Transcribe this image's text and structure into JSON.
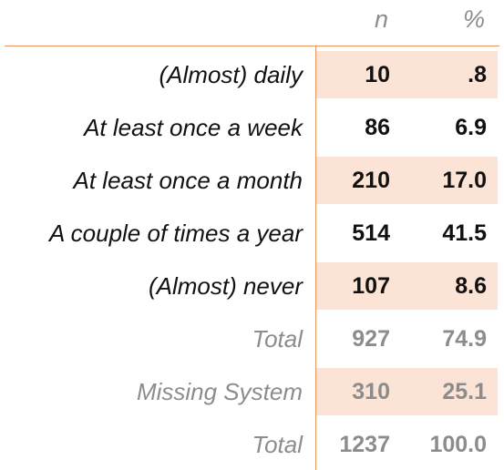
{
  "header": {
    "n": "n",
    "pct": "%"
  },
  "rows": [
    {
      "label": "(Almost) daily",
      "n": "10",
      "pct": ".8"
    },
    {
      "label": "At least once a week",
      "n": "86",
      "pct": "6.9"
    },
    {
      "label": "At least once a month",
      "n": "210",
      "pct": "17.0"
    },
    {
      "label": "A couple of times a year",
      "n": "514",
      "pct": "41.5"
    },
    {
      "label": "(Almost) never",
      "n": "107",
      "pct": "8.6"
    },
    {
      "label": "Total",
      "n": "927",
      "pct": "74.9"
    },
    {
      "label": "Missing System",
      "n": "310",
      "pct": "25.1"
    },
    {
      "label": "Total",
      "n": "1237",
      "pct": "100.0"
    }
  ],
  "colors": {
    "accent_rule": "#e8955f",
    "row_shade": "#fbe3d6",
    "muted_text": "#8c8c8c"
  }
}
